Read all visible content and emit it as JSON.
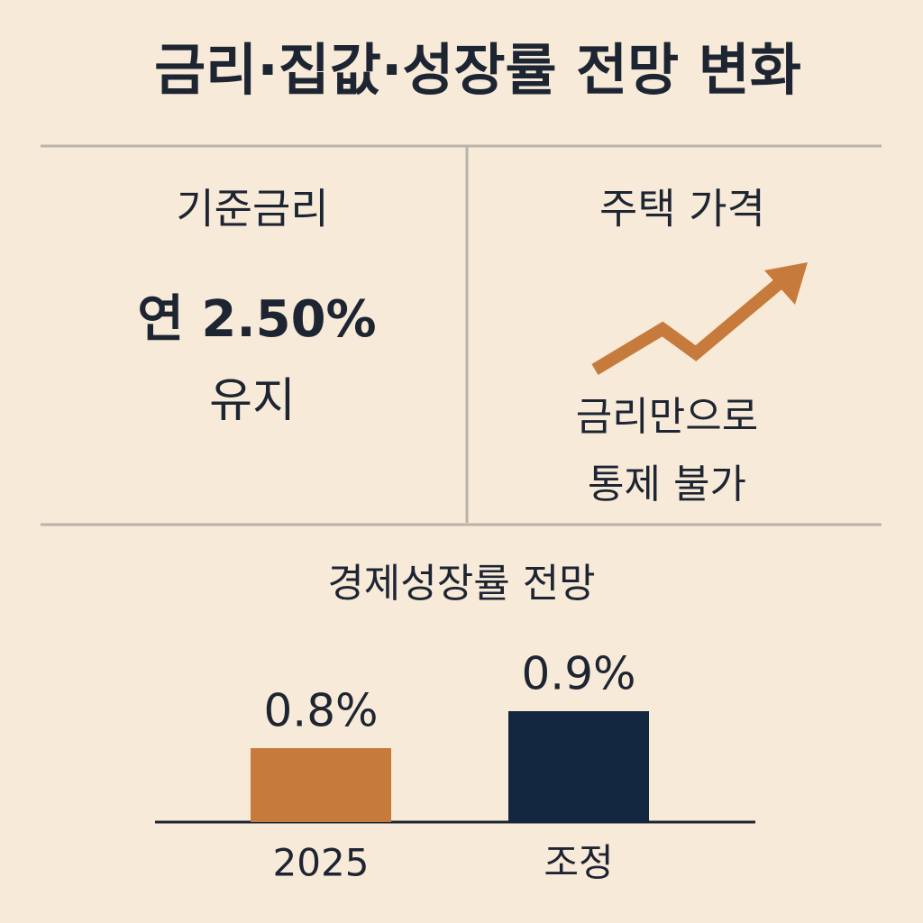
{
  "header": {
    "title": "금리·집값·성장률 전망 변화"
  },
  "panels": [
    {
      "title": "기준금리",
      "lines": [
        "연 2.50%",
        "유지"
      ]
    },
    {
      "title": "주택 가격",
      "lines": [
        "금리만으로",
        "통제 불가"
      ]
    }
  ],
  "chart_data": {
    "type": "bar",
    "title": "경제성장률 전망",
    "categories": [
      "2025",
      "조정"
    ],
    "values": [
      0.8,
      0.9
    ],
    "value_labels": [
      "0.8%",
      "0.9%"
    ],
    "colors": [
      "#c67a3c",
      "#13263f"
    ],
    "ylim": [
      0.6,
      0.9
    ]
  }
}
